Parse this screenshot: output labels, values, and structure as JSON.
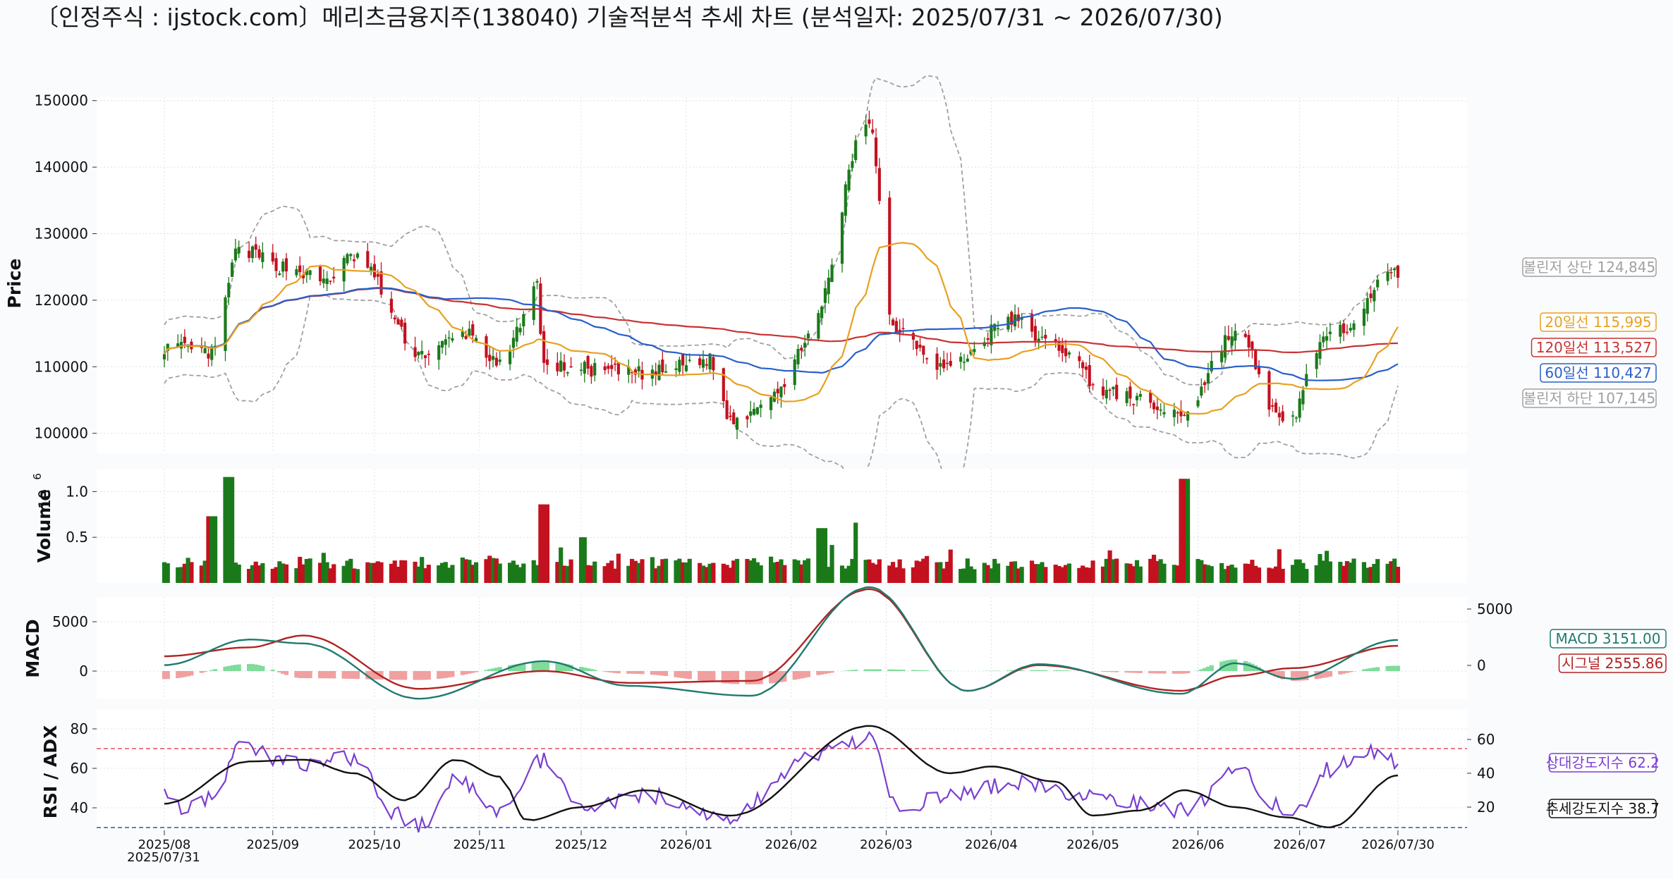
{
  "title": "〔인정주식 : ijstock.com〕메리츠금융지주(138040) 기술적분석 추세 차트 (분석일자: 2025/07/31 ~ 2026/07/30)",
  "x_ticks": [
    "2025/08",
    "2025/09",
    "2025/10",
    "2025/11",
    "2025/12",
    "2026/01",
    "2026/02",
    "2026/03",
    "2026/04",
    "2026/05",
    "2026/06",
    "2026/07",
    "2026/07/30"
  ],
  "x_start_label": "2025/07/31",
  "colors": {
    "up": "#1a7a1a",
    "down": "#c3111f",
    "ma20": "#e8a020",
    "ma60": "#2a5fc8",
    "ma120": "#c83232",
    "bb": "#a0a0a0",
    "macd": "#1f7a6e",
    "signal": "#b22222",
    "rsi": "#7a3fd0",
    "adx": "#111111",
    "hist_up": "#7fdc9a",
    "hist_down": "#f0a0a0"
  },
  "chart_data": [
    {
      "type": "candlestick",
      "ylabel": "Price",
      "ylim": [
        97000,
        150500
      ],
      "yticks": [
        100000,
        110000,
        120000,
        130000,
        140000,
        150000
      ],
      "date_range": [
        "2025/07/31",
        "2026/07/30"
      ],
      "keypoints": [
        {
          "date": "2025/07/31",
          "close": 113000
        },
        {
          "date": "2025/08/14",
          "close": 112000
        },
        {
          "date": "2025/08/22",
          "close": 127500
        },
        {
          "date": "2025/09/05",
          "close": 125000
        },
        {
          "date": "2025/09/16",
          "close": 123000
        },
        {
          "date": "2025/09/25",
          "close": 126500
        },
        {
          "date": "2025/10/15",
          "close": 112000
        },
        {
          "date": "2025/10/29",
          "close": 115000
        },
        {
          "date": "2025/11/07",
          "close": 110000
        },
        {
          "date": "2025/11/18",
          "close": 122000
        },
        {
          "date": "2025/11/20",
          "close": 110000
        },
        {
          "date": "2025/12/20",
          "close": 109000
        },
        {
          "date": "2026/01/08",
          "close": 111000
        },
        {
          "date": "2026/01/14",
          "close": 102000
        },
        {
          "date": "2026/01/30",
          "close": 107000
        },
        {
          "date": "2026/02/06",
          "close": 115000
        },
        {
          "date": "2026/02/24",
          "close": 147000
        },
        {
          "date": "2026/03/03",
          "close": 116000
        },
        {
          "date": "2026/03/19",
          "close": 110000
        },
        {
          "date": "2026/04/07",
          "close": 117000
        },
        {
          "date": "2026/04/20",
          "close": 113000
        },
        {
          "date": "2026/05/06",
          "close": 106000
        },
        {
          "date": "2026/05/27",
          "close": 103000
        },
        {
          "date": "2026/06/12",
          "close": 115000
        },
        {
          "date": "2026/06/27",
          "close": 101000
        },
        {
          "date": "2026/07/08",
          "close": 114000
        },
        {
          "date": "2026/07/30",
          "close": 124000
        }
      ],
      "last": {
        "upper_band": 124845,
        "ma20": 115995,
        "ma120": 113527,
        "ma60": 110427,
        "lower_band": 107145
      },
      "labels": {
        "bb_upper": "볼린저 상단 124,845",
        "ma20": "20일선 115,995",
        "ma120": "120일선 113,527",
        "ma60": "60일선 110,427",
        "bb_lower": "볼린저 하단 107,145"
      }
    },
    {
      "type": "bar",
      "ylabel": "Volume",
      "scale_label": "10",
      "scale_exp": "6",
      "ylim": [
        0,
        1.25
      ],
      "yticks": [
        0.5,
        1.0
      ],
      "spikes": [
        {
          "date": "2025/08/14",
          "value": 0.73
        },
        {
          "date": "2025/08/19",
          "value": 1.16
        },
        {
          "date": "2025/11/20",
          "value": 0.86
        },
        {
          "date": "2025/12/01",
          "value": 0.5
        },
        {
          "date": "2026/02/10",
          "value": 0.6
        },
        {
          "date": "2026/02/21",
          "value": 0.66
        },
        {
          "date": "2026/05/28",
          "value": 1.14
        }
      ]
    },
    {
      "type": "line",
      "ylabel": "MACD",
      "yticks_left": [
        0,
        5000
      ],
      "yticks_right": [
        0,
        5000
      ],
      "keypoints": [
        {
          "date": "2025/07/31",
          "macd": 600,
          "signal": 1500
        },
        {
          "date": "2025/08/25",
          "macd": 3200,
          "signal": 2400
        },
        {
          "date": "2025/09/10",
          "macd": 2800,
          "signal": 3600
        },
        {
          "date": "2025/10/14",
          "macd": -2800,
          "signal": -1800
        },
        {
          "date": "2025/11/20",
          "macd": 1000,
          "signal": 0
        },
        {
          "date": "2025/12/15",
          "macd": -1500,
          "signal": -1200
        },
        {
          "date": "2026/01/20",
          "macd": -2500,
          "signal": -1000
        },
        {
          "date": "2026/02/24",
          "macd": 8500,
          "signal": 8300
        },
        {
          "date": "2026/03/25",
          "macd": -2000,
          "signal": -2000
        },
        {
          "date": "2026/04/15",
          "macd": 700,
          "signal": 600
        },
        {
          "date": "2026/05/27",
          "macd": -2300,
          "signal": -2000
        },
        {
          "date": "2026/06/12",
          "macd": 800,
          "signal": -500
        },
        {
          "date": "2026/06/29",
          "macd": -800,
          "signal": 300
        },
        {
          "date": "2026/07/30",
          "macd": 3151,
          "signal": 2556
        }
      ],
      "last": {
        "macd": 3151.0,
        "signal": 2555.86
      },
      "labels": {
        "macd": "MACD 3151.00",
        "signal": "시그널 2555.86"
      }
    },
    {
      "type": "line",
      "ylabel": "RSI / ADX",
      "yticks_left": [
        40,
        60,
        80
      ],
      "yticks_right": [
        20,
        40,
        60
      ],
      "overbought": 70,
      "oversold": 30,
      "rsi_keypoints": [
        {
          "date": "2025/07/31",
          "value": 48
        },
        {
          "date": "2025/08/05",
          "value": 40
        },
        {
          "date": "2025/08/14",
          "value": 45
        },
        {
          "date": "2025/08/22",
          "value": 70
        },
        {
          "date": "2025/09/10",
          "value": 62
        },
        {
          "date": "2025/09/25",
          "value": 65
        },
        {
          "date": "2025/10/08",
          "value": 36
        },
        {
          "date": "2025/10/14",
          "value": 30
        },
        {
          "date": "2025/10/25",
          "value": 56
        },
        {
          "date": "2025/11/07",
          "value": 39
        },
        {
          "date": "2025/11/20",
          "value": 64
        },
        {
          "date": "2025/12/01",
          "value": 38
        },
        {
          "date": "2025/12/20",
          "value": 47
        },
        {
          "date": "2026/01/14",
          "value": 35
        },
        {
          "date": "2026/02/06",
          "value": 65
        },
        {
          "date": "2026/02/24",
          "value": 75
        },
        {
          "date": "2026/03/05",
          "value": 40
        },
        {
          "date": "2026/03/20",
          "value": 47
        },
        {
          "date": "2026/04/10",
          "value": 52
        },
        {
          "date": "2026/05/10",
          "value": 44
        },
        {
          "date": "2026/05/28",
          "value": 38
        },
        {
          "date": "2026/06/12",
          "value": 58
        },
        {
          "date": "2026/06/29",
          "value": 37
        },
        {
          "date": "2026/07/10",
          "value": 60
        },
        {
          "date": "2026/07/22",
          "value": 68
        },
        {
          "date": "2026/07/30",
          "value": 62.2
        }
      ],
      "adx_keypoints": [
        {
          "date": "2025/07/31",
          "value": 22
        },
        {
          "date": "2025/08/25",
          "value": 47
        },
        {
          "date": "2025/09/10",
          "value": 48
        },
        {
          "date": "2025/09/25",
          "value": 40
        },
        {
          "date": "2025/10/10",
          "value": 24
        },
        {
          "date": "2025/10/25",
          "value": 48
        },
        {
          "date": "2025/11/07",
          "value": 38
        },
        {
          "date": "2025/11/15",
          "value": 12
        },
        {
          "date": "2025/12/01",
          "value": 20
        },
        {
          "date": "2025/12/20",
          "value": 30
        },
        {
          "date": "2026/01/14",
          "value": 15
        },
        {
          "date": "2026/02/24",
          "value": 68
        },
        {
          "date": "2026/03/20",
          "value": 40
        },
        {
          "date": "2026/04/01",
          "value": 44
        },
        {
          "date": "2026/04/20",
          "value": 35
        },
        {
          "date": "2026/05/01",
          "value": 15
        },
        {
          "date": "2026/05/15",
          "value": 18
        },
        {
          "date": "2026/05/28",
          "value": 30
        },
        {
          "date": "2026/06/12",
          "value": 20
        },
        {
          "date": "2026/06/27",
          "value": 14
        },
        {
          "date": "2026/07/10",
          "value": 8
        },
        {
          "date": "2026/07/30",
          "value": 38.7
        }
      ],
      "last": {
        "rsi": 62.2,
        "adx": 38.7
      },
      "labels": {
        "rsi": "상대강도지수 62.2",
        "adx": "추세강도지수 38.7"
      }
    }
  ]
}
